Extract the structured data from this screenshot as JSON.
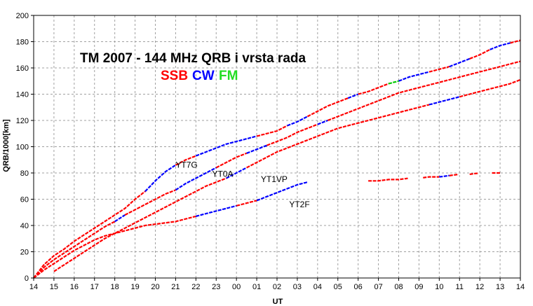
{
  "chart_data": {
    "type": "line",
    "title": "TM 2007 - 144 MHz QRB i vrsta rada",
    "legend": [
      {
        "name": "SSB",
        "color": "#ff0000"
      },
      {
        "name": "CW",
        "color": "#0000ff"
      },
      {
        "name": "FM",
        "color": "#00cc00"
      }
    ],
    "xlabel": "UT",
    "ylabel": "QRB/1000[km]",
    "xlim": [
      0,
      24
    ],
    "ylim": [
      0,
      200
    ],
    "x_ticks": [
      "14",
      "15",
      "16",
      "17",
      "18",
      "19",
      "20",
      "21",
      "22",
      "23",
      "00",
      "01",
      "02",
      "03",
      "04",
      "05",
      "06",
      "07",
      "08",
      "09",
      "10",
      "11",
      "12",
      "13",
      "14"
    ],
    "y_ticks": [
      0,
      20,
      40,
      60,
      80,
      100,
      120,
      140,
      160,
      180,
      200
    ],
    "grid": true,
    "series": [
      {
        "name": "YT7G",
        "x": [
          0,
          0.5,
          1,
          1.5,
          2,
          2.5,
          3,
          3.5,
          4,
          4.5,
          5,
          5.5,
          6,
          6.5,
          7,
          7.5,
          8,
          8.5,
          9,
          9.5,
          10,
          10.5,
          11,
          11.5,
          12,
          12.5,
          13,
          13.5,
          14,
          14.5,
          15,
          15.5,
          16,
          16.5,
          17,
          17.5,
          18,
          18.5,
          19,
          19.5,
          20,
          20.5,
          21,
          21.5,
          22,
          22.5,
          23,
          23.5,
          24
        ],
        "y": [
          0,
          10,
          17,
          22,
          28,
          33,
          38,
          43,
          48,
          53,
          60,
          66,
          74,
          81,
          86,
          90,
          93,
          96,
          99,
          102,
          104,
          106,
          108,
          110,
          112,
          116,
          119,
          123,
          127,
          131,
          134,
          137,
          140,
          142,
          145,
          148,
          150,
          153,
          155,
          157,
          159,
          161,
          164,
          167,
          170,
          174,
          177,
          179,
          181
        ],
        "segments": [
          {
            "from": 0,
            "to": 5.5,
            "mode": "SSB"
          },
          {
            "from": 5.5,
            "to": 7.0,
            "mode": "CW"
          },
          {
            "from": 7.0,
            "to": 8.0,
            "mode": "SSB"
          },
          {
            "from": 8.0,
            "to": 11.0,
            "mode": "CW"
          },
          {
            "from": 11.0,
            "to": 12.5,
            "mode": "SSB"
          },
          {
            "from": 12.5,
            "to": 13.5,
            "mode": "CW"
          },
          {
            "from": 13.5,
            "to": 15.5,
            "mode": "SSB"
          },
          {
            "from": 15.5,
            "to": 16.0,
            "mode": "CW"
          },
          {
            "from": 16.0,
            "to": 17.5,
            "mode": "SSB"
          },
          {
            "from": 17.5,
            "to": 18.0,
            "mode": "FM"
          },
          {
            "from": 18.0,
            "to": 19.5,
            "mode": "CW"
          },
          {
            "from": 19.5,
            "to": 20.5,
            "mode": "SSB"
          },
          {
            "from": 20.5,
            "to": 21.5,
            "mode": "CW"
          },
          {
            "from": 21.5,
            "to": 22.5,
            "mode": "SSB"
          },
          {
            "from": 22.5,
            "to": 23.5,
            "mode": "CW"
          },
          {
            "from": 23.5,
            "to": 24,
            "mode": "SSB"
          }
        ]
      },
      {
        "name": "YT0A",
        "x": [
          0,
          0.5,
          1,
          1.5,
          2,
          2.5,
          3,
          3.5,
          4,
          4.5,
          5,
          5.5,
          6,
          6.5,
          7,
          7.5,
          8,
          8.5,
          9,
          9.5,
          10,
          10.5,
          11,
          11.5,
          12,
          12.5,
          13,
          13.5,
          14,
          14.5,
          15,
          15.5,
          16,
          16.5,
          17,
          17.5,
          18,
          18.5,
          19,
          19.5,
          20,
          20.5,
          21,
          21.5,
          22,
          22.5,
          23,
          23.5,
          24
        ],
        "y": [
          0,
          8,
          14,
          19,
          24,
          29,
          34,
          39,
          43,
          48,
          52,
          56,
          60,
          64,
          67,
          72,
          76,
          80,
          84,
          88,
          92,
          95,
          98,
          101,
          104,
          107,
          111,
          114,
          117,
          120,
          123,
          126,
          129,
          132,
          135,
          138,
          141,
          143,
          145,
          147,
          149,
          151,
          153,
          155,
          157,
          159,
          161,
          163,
          165
        ],
        "segments": [
          {
            "from": 0,
            "to": 4.0,
            "mode": "SSB"
          },
          {
            "from": 4.0,
            "to": 4.5,
            "mode": "CW"
          },
          {
            "from": 4.5,
            "to": 7.0,
            "mode": "SSB"
          },
          {
            "from": 7.0,
            "to": 9.0,
            "mode": "CW"
          },
          {
            "from": 9.0,
            "to": 10.5,
            "mode": "SSB"
          },
          {
            "from": 10.5,
            "to": 11.5,
            "mode": "CW"
          },
          {
            "from": 11.5,
            "to": 14.0,
            "mode": "SSB"
          },
          {
            "from": 14.0,
            "to": 14.5,
            "mode": "CW"
          },
          {
            "from": 14.5,
            "to": 24,
            "mode": "SSB"
          }
        ]
      },
      {
        "name": "YT1VP",
        "x": [
          1,
          1.5,
          2,
          2.5,
          3,
          3.5,
          4,
          4.5,
          5,
          5.5,
          6,
          6.5,
          7,
          7.5,
          8,
          8.5,
          9,
          9.5,
          10,
          10.5,
          11,
          11.5,
          12,
          12.5,
          13,
          13.5,
          14,
          14.5,
          15,
          15.5,
          16,
          16.5,
          17,
          17.5,
          18,
          18.5,
          19,
          19.5,
          20,
          20.5,
          21,
          21.5,
          22,
          22.5,
          23,
          23.5,
          24
        ],
        "y": [
          5,
          10,
          15,
          20,
          25,
          30,
          34,
          38,
          42,
          46,
          50,
          54,
          58,
          62,
          66,
          70,
          73,
          76,
          80,
          84,
          88,
          92,
          96,
          99,
          102,
          105,
          108,
          111,
          114,
          116,
          118,
          120,
          122,
          124,
          126,
          128,
          130,
          132,
          134,
          136,
          138,
          140,
          142,
          144,
          146,
          148,
          151
        ],
        "segments": [
          {
            "from": 1,
            "to": 9.5,
            "mode": "SSB"
          },
          {
            "from": 9.5,
            "to": 10.5,
            "mode": "CW"
          },
          {
            "from": 10.5,
            "to": 19.5,
            "mode": "SSB"
          },
          {
            "from": 19.5,
            "to": 21.0,
            "mode": "CW"
          },
          {
            "from": 21.0,
            "to": 24,
            "mode": "SSB"
          }
        ]
      },
      {
        "name": "YT2F",
        "x": [
          0,
          0.5,
          1,
          1.5,
          2,
          2.5,
          3,
          3.5,
          4,
          4.5,
          5,
          5.5,
          6,
          6.5,
          7,
          7.5,
          8,
          8.5,
          9,
          9.5,
          10,
          10.5,
          11,
          11.5,
          12,
          12.5,
          13,
          13.5
        ],
        "y": [
          0,
          6,
          11,
          16,
          21,
          25,
          29,
          32,
          34,
          36,
          38,
          40,
          41,
          42,
          43,
          45,
          47,
          49,
          51,
          53,
          55,
          57,
          59,
          62,
          65,
          68,
          71,
          73
        ],
        "segments": [
          {
            "from": 0,
            "to": 8.0,
            "mode": "SSB"
          },
          {
            "from": 8.0,
            "to": 10.0,
            "mode": "CW"
          },
          {
            "from": 10.0,
            "to": 11.0,
            "mode": "SSB"
          },
          {
            "from": 11.0,
            "to": 13.5,
            "mode": "CW"
          }
        ]
      },
      {
        "name": "",
        "x": [
          16.5,
          17,
          17.5,
          18,
          18.5,
          19,
          19.5,
          20,
          20.5,
          21,
          21.5,
          22,
          22.5,
          23
        ],
        "y": [
          74,
          74,
          75,
          75,
          76,
          76,
          77,
          77,
          78,
          79,
          79,
          80,
          80,
          80
        ],
        "segments": [
          {
            "from": 16.5,
            "to": 20.0,
            "mode": "SSB"
          },
          {
            "from": 20.0,
            "to": 20.5,
            "mode": "CW"
          },
          {
            "from": 20.5,
            "to": 23,
            "mode": "SSB"
          }
        ],
        "gaps": [
          [
            18.5,
            19.2
          ],
          [
            21.0,
            21.5
          ],
          [
            22.0,
            22.6
          ]
        ]
      }
    ],
    "annotations": [
      {
        "text": "YT7G",
        "x": 7.0,
        "y": 84
      },
      {
        "text": "YT0A",
        "x": 8.8,
        "y": 77
      },
      {
        "text": "YT1VP",
        "x": 11.2,
        "y": 73
      },
      {
        "text": "YT2F",
        "x": 12.6,
        "y": 54
      }
    ]
  }
}
